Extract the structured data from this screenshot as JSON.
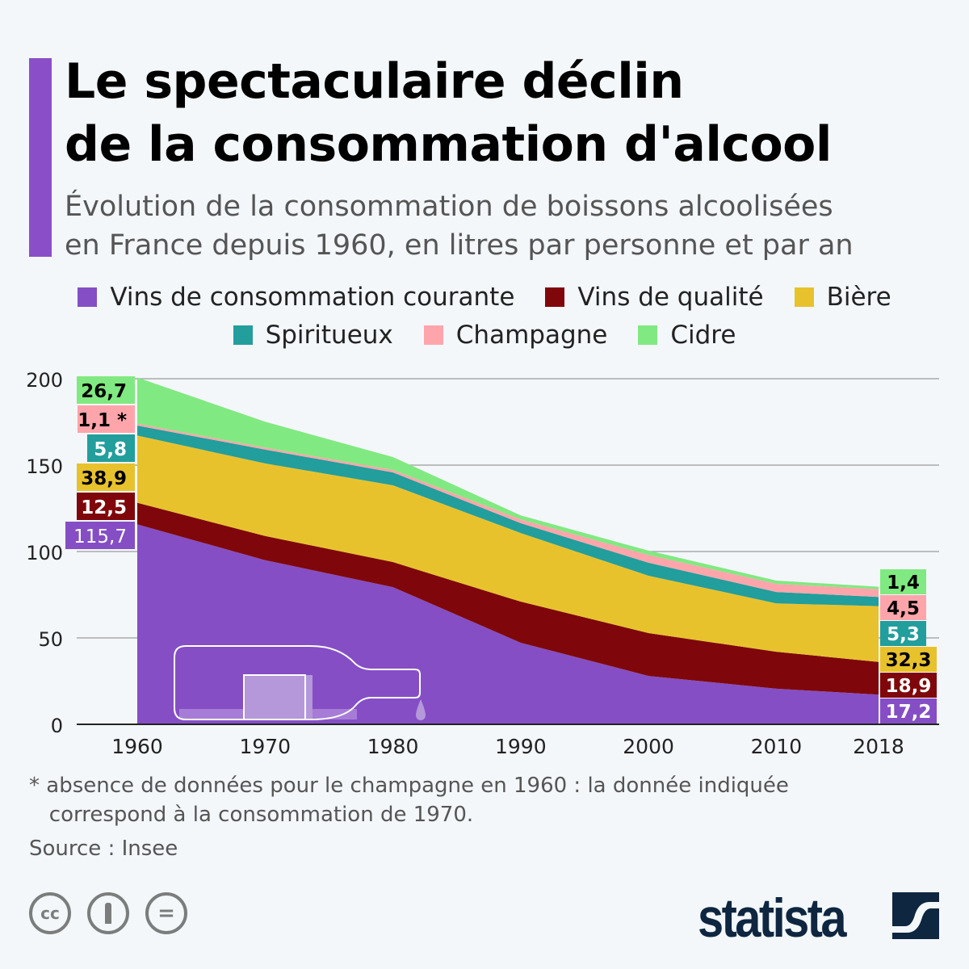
{
  "title_lines": [
    "Le spectaculaire déclin",
    "de la consommation d'alcool"
  ],
  "subtitle_lines": [
    "Évolution de la consommation de boissons alcoolisées",
    "en France depuis 1960, en litres par personne et par an"
  ],
  "legend": [
    {
      "label": "Vins de consommation courante",
      "color": "#854ec5"
    },
    {
      "label": "Vins de qualité",
      "color": "#7f070b"
    },
    {
      "label": "Bière",
      "color": "#e8c22d"
    },
    {
      "label": "Spiritueux",
      "color": "#229e9c"
    },
    {
      "label": "Champagne",
      "color": "#fea5ab"
    },
    {
      "label": "Cidre",
      "color": "#81e981"
    }
  ],
  "chart_data": {
    "type": "area",
    "stacked": true,
    "x": [
      1960,
      1970,
      1980,
      1990,
      2000,
      2010,
      2018
    ],
    "x_tick_labels": [
      "1960",
      "1970",
      "1980",
      "1990",
      "2000",
      "2010",
      "2018"
    ],
    "y_tick_labels": [
      "0",
      "50",
      "100",
      "150",
      "200"
    ],
    "ylim": [
      0,
      200
    ],
    "grid": true,
    "series": [
      {
        "name": "Vins de consommation courante",
        "color": "#854ec5",
        "values": [
          115.7,
          95,
          79.4,
          47.2,
          28,
          20.6,
          17.2
        ],
        "start_label": "115,7",
        "end_label": "17,2",
        "label_text_color": "#ffffff"
      },
      {
        "name": "Vins de qualité",
        "color": "#7f070b",
        "values": [
          12.5,
          14,
          14.5,
          23.8,
          24.8,
          21.4,
          18.9
        ],
        "start_label": "12,5",
        "end_label": "18,9",
        "label_text_color": "#ffffff"
      },
      {
        "name": "Bière",
        "color": "#e8c22d",
        "values": [
          38.9,
          42,
          44.4,
          39.7,
          33.2,
          28,
          32.3
        ],
        "start_label": "38,9",
        "end_label": "32,3",
        "label_text_color": "#000000"
      },
      {
        "name": "Spiritueux",
        "color": "#229e9c",
        "values": [
          5.8,
          8,
          7.5,
          5.7,
          7.5,
          6.6,
          5.3
        ],
        "start_label": "5,8",
        "end_label": "5,3",
        "label_text_color": "#ffffff"
      },
      {
        "name": "Champagne",
        "color": "#fea5ab",
        "values": [
          1.1,
          1.1,
          1.4,
          2.2,
          4.5,
          4.7,
          4.5
        ],
        "start_label": "1,1 *",
        "end_label": "4,5",
        "label_text_color": "#000000"
      },
      {
        "name": "Cidre",
        "color": "#81e981",
        "values": [
          26.7,
          15,
          7.5,
          2.3,
          2.5,
          1.9,
          1.4
        ],
        "start_label": "26,7",
        "end_label": "1,4",
        "label_text_color": "#000000"
      }
    ]
  },
  "footnote_lines": [
    "* absence de données pour le champagne en 1960 : la donnée indiquée",
    "   correspond à la consommation de 1970."
  ],
  "source": "Source : Insee",
  "license_icons": [
    "cc-icon",
    "attribution-icon",
    "no-derivatives-icon"
  ],
  "license_glyphs": [
    "cc",
    "",
    "="
  ],
  "brand": "statista"
}
